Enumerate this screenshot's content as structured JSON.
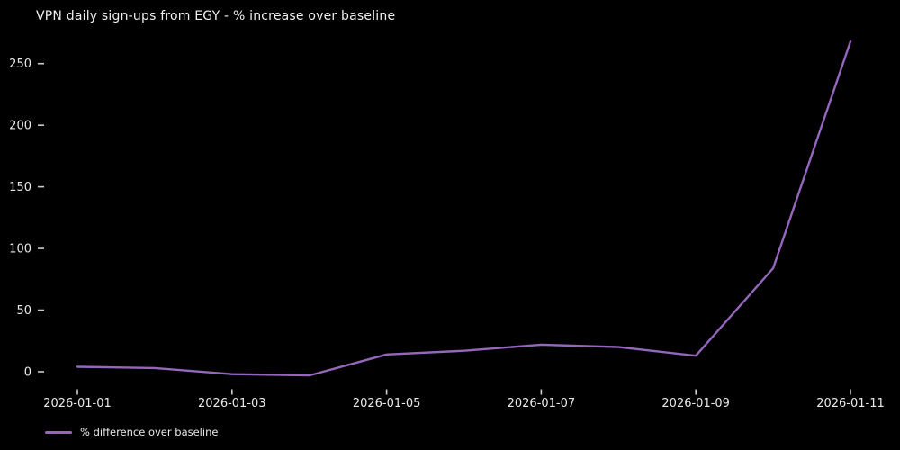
{
  "chart_data": {
    "type": "line",
    "title": "VPN daily sign-ups from EGY - % increase over baseline",
    "x": [
      "2026-01-01",
      "2026-01-02",
      "2026-01-03",
      "2026-01-04",
      "2026-01-05",
      "2026-01-06",
      "2026-01-07",
      "2026-01-08",
      "2026-01-09",
      "2026-01-10",
      "2026-01-11"
    ],
    "xtick_labels": [
      "2026-01-01",
      "2026-01-03",
      "2026-01-05",
      "2026-01-07",
      "2026-01-09",
      "2026-01-11"
    ],
    "yticks": [
      0,
      50,
      100,
      150,
      200,
      250
    ],
    "ylim": [
      -12,
      278
    ],
    "series": [
      {
        "name": "% difference over baseline",
        "color": "#9467bd",
        "values": [
          4,
          3,
          -2,
          -3,
          14,
          17,
          22,
          20,
          13,
          84,
          268
        ]
      }
    ],
    "xlabel": "",
    "ylabel": "",
    "grid": false,
    "legend_position": "lower-left",
    "background": "#000000",
    "text_color": "#f0f0f0",
    "tick_color": "#cccccc"
  }
}
